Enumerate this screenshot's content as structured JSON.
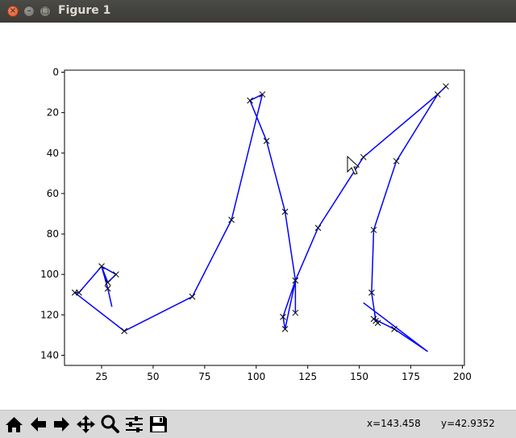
{
  "window": {
    "title": "Figure 1"
  },
  "toolbar": {
    "buttons": [
      {
        "name": "home-button",
        "icon": "home-icon"
      },
      {
        "name": "back-button",
        "icon": "arrow-left-icon"
      },
      {
        "name": "forward-button",
        "icon": "arrow-right-icon"
      },
      {
        "name": "pan-button",
        "icon": "move-icon"
      },
      {
        "name": "zoom-button",
        "icon": "magnifier-icon"
      },
      {
        "name": "subplots-button",
        "icon": "sliders-icon"
      },
      {
        "name": "save-button",
        "icon": "floppy-icon"
      }
    ],
    "x_readout": "x=143.458",
    "y_readout": "y=42.9352"
  },
  "chart_data": {
    "type": "line",
    "title": "",
    "xlabel": "",
    "ylabel": "",
    "xlim": [
      7,
      201
    ],
    "ylim": [
      145,
      -1
    ],
    "y_inverted": true,
    "grid": false,
    "x_ticks": [
      25,
      50,
      75,
      100,
      125,
      150,
      175,
      200
    ],
    "y_ticks": [
      0,
      20,
      40,
      60,
      80,
      100,
      120,
      140
    ],
    "series_color": "#0000ff",
    "marker": "x",
    "markers": [
      [
        12,
        109
      ],
      [
        14,
        109
      ],
      [
        25,
        96
      ],
      [
        28,
        104
      ],
      [
        28,
        107
      ],
      [
        32,
        100
      ],
      [
        36,
        128
      ],
      [
        69,
        111
      ],
      [
        88,
        73
      ],
      [
        97,
        14
      ],
      [
        103,
        11
      ],
      [
        105,
        34
      ],
      [
        113,
        121
      ],
      [
        114,
        127
      ],
      [
        114,
        69
      ],
      [
        119,
        103
      ],
      [
        119,
        119
      ],
      [
        130,
        77
      ],
      [
        152,
        42
      ],
      [
        156,
        109
      ],
      [
        157,
        78
      ],
      [
        157,
        122
      ],
      [
        158,
        123
      ],
      [
        159,
        124
      ],
      [
        167,
        127
      ],
      [
        168,
        44
      ],
      [
        188,
        11
      ],
      [
        192,
        7
      ]
    ],
    "path": [
      [
        30,
        116
      ],
      [
        28,
        107
      ],
      [
        25,
        96
      ],
      [
        32,
        100
      ],
      [
        28,
        104
      ],
      [
        25,
        96
      ],
      [
        14,
        109
      ],
      [
        12,
        109
      ],
      [
        36,
        128
      ],
      [
        69,
        111
      ],
      [
        88,
        73
      ],
      [
        103,
        11
      ],
      [
        97,
        14
      ],
      [
        105,
        34
      ],
      [
        114,
        69
      ],
      [
        119,
        103
      ],
      [
        119,
        119
      ],
      [
        119,
        103
      ],
      [
        114,
        127
      ],
      [
        113,
        121
      ],
      [
        119,
        103
      ],
      [
        130,
        77
      ],
      [
        152,
        42
      ],
      [
        188,
        11
      ],
      [
        192,
        7
      ],
      [
        188,
        11
      ],
      [
        168,
        44
      ],
      [
        157,
        78
      ],
      [
        156,
        109
      ],
      [
        158,
        123
      ],
      [
        159,
        124
      ],
      [
        157,
        122
      ],
      [
        167,
        127
      ],
      [
        183,
        138
      ],
      [
        152,
        114
      ]
    ]
  }
}
